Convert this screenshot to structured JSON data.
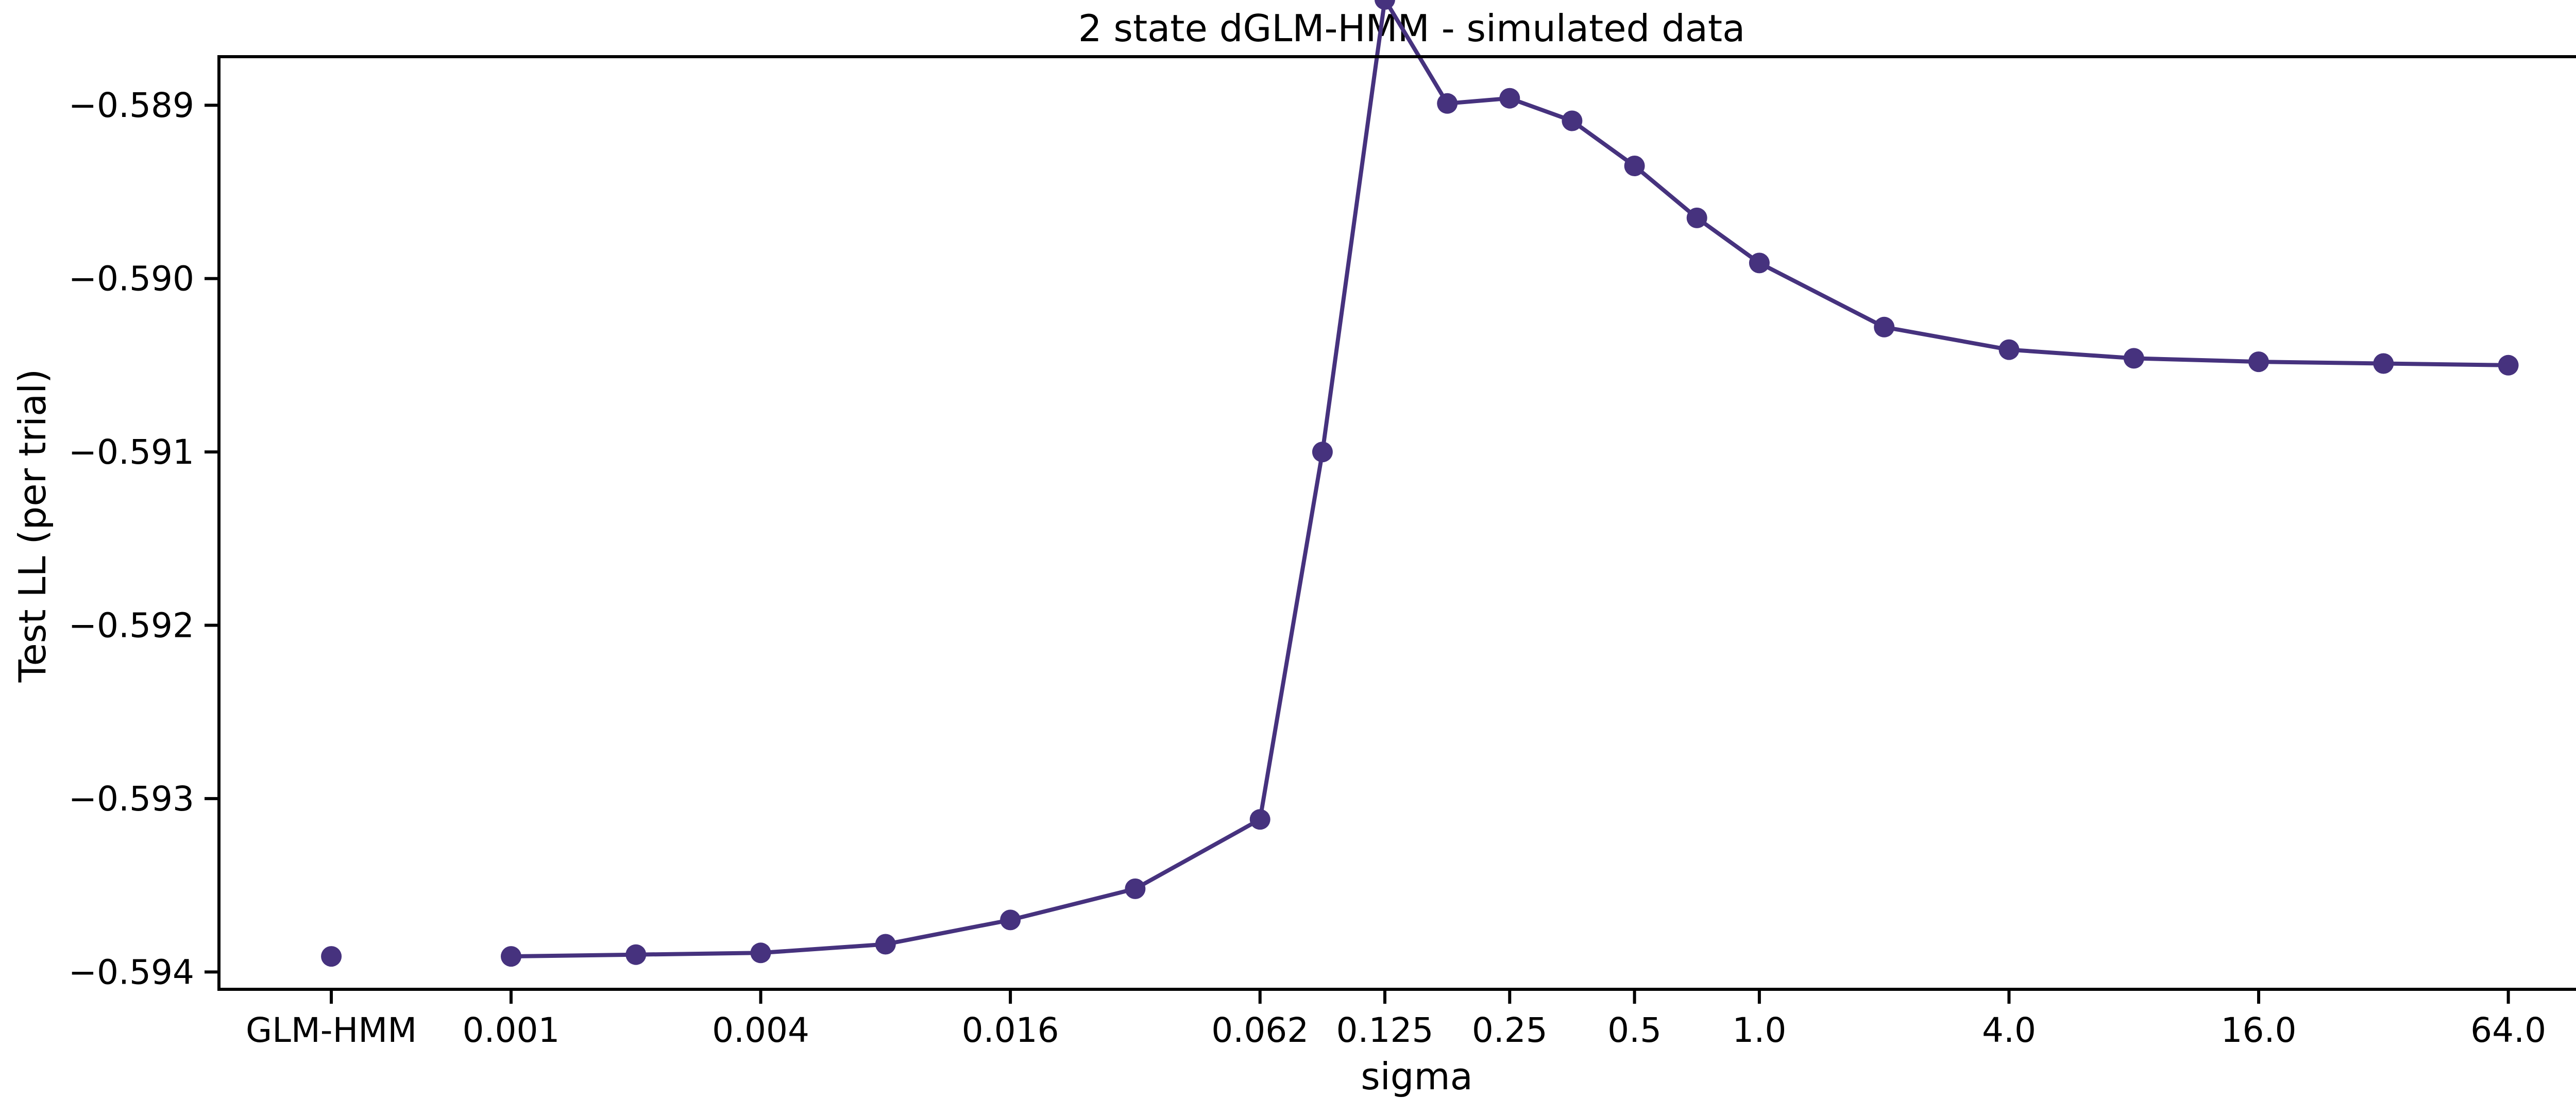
{
  "chart_data": {
    "type": "line",
    "title": "2 state dGLM-HMM - simulated data",
    "xlabel": "sigma",
    "ylabel": "Test LL (per trial)",
    "x_tick_labels": [
      "GLM-HMM",
      "0.001",
      "0.004",
      "0.016",
      "0.062",
      "0.125",
      "0.25",
      "0.5",
      "1.0",
      "4.0",
      "16.0",
      "64.0"
    ],
    "x_tick_positions": [
      0,
      1.44,
      3.44,
      5.44,
      7.44,
      8.44,
      9.44,
      10.44,
      11.44,
      13.44,
      15.44,
      17.44
    ],
    "y_ticks": [
      -0.594,
      -0.593,
      -0.592,
      -0.591,
      -0.59,
      -0.589
    ],
    "y_tick_labels": [
      "−0.594",
      "−0.593",
      "−0.592",
      "−0.591",
      "−0.590",
      "−0.589"
    ],
    "ylim": [
      -0.5941,
      -0.58872
    ],
    "xlim": [
      -0.9,
      18.3
    ],
    "line_color": "#46327e",
    "grid": false,
    "series": [
      {
        "x": [
          0
        ],
        "y": [
          -0.59391
        ],
        "connected": false
      },
      {
        "x": [
          1.44,
          2.44,
          3.44,
          4.44,
          5.44,
          6.44,
          7.44,
          7.94,
          8.44,
          8.94,
          9.44,
          9.94,
          10.44,
          10.94,
          11.44,
          12.44,
          13.44,
          14.44,
          15.44,
          16.44,
          17.44
        ],
        "y": [
          -0.59391,
          -0.5939,
          -0.59389,
          -0.59384,
          -0.5937,
          -0.59352,
          -0.59312,
          -0.591,
          -0.58839,
          -0.58899,
          -0.58896,
          -0.58909,
          -0.58935,
          -0.58965,
          -0.58991,
          -0.59028,
          -0.59041,
          -0.59046,
          -0.59048,
          -0.59049,
          -0.5905
        ],
        "connected": true
      }
    ]
  }
}
